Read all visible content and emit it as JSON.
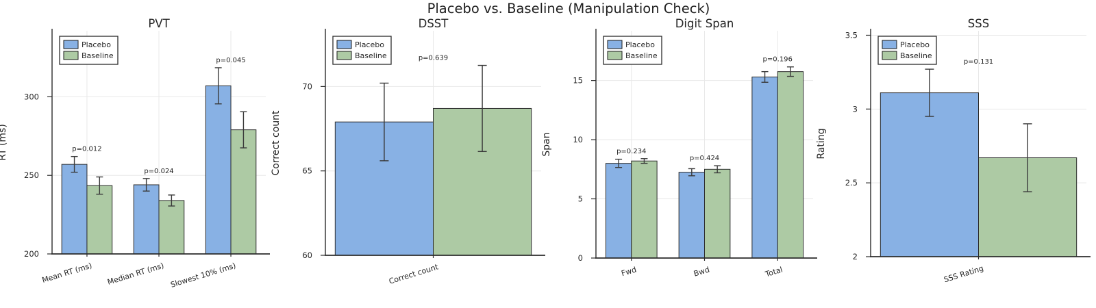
{
  "figure": {
    "title": "Placebo vs. Baseline (Manipulation Check)"
  },
  "colors": {
    "placebo": "#88b1e4",
    "baseline": "#adcaa4",
    "bar_edge": "#2b2b2b",
    "error_bar": "#3a3a3a",
    "grid": "#e8e8e8",
    "axis": "#2b2b2b",
    "text": "#262626"
  },
  "legend": {
    "labels": [
      "Placebo",
      "Baseline"
    ]
  },
  "chart_data": [
    {
      "id": "pvt",
      "type": "bar",
      "title": "PVT",
      "ylabel": "RT (ms)",
      "categories": [
        "Mean RT (ms)",
        "Median RT (ms)",
        "Slowest 10% (ms)"
      ],
      "series": [
        {
          "name": "Placebo",
          "values": [
            257,
            244,
            307
          ],
          "errors": [
            5,
            4,
            11.5
          ]
        },
        {
          "name": "Baseline",
          "values": [
            243.5,
            234,
            279
          ],
          "errors": [
            5.5,
            3.5,
            11.5
          ]
        }
      ],
      "p_values": [
        "p=0.012",
        "p=0.024",
        "p=0.045"
      ],
      "ylim": [
        200,
        342
      ],
      "yticks": [
        200,
        250,
        300
      ],
      "grid": true,
      "legend_position": "upper left"
    },
    {
      "id": "dsst",
      "type": "bar",
      "title": "DSST",
      "ylabel": "Correct count",
      "categories": [
        "Correct count"
      ],
      "series": [
        {
          "name": "Placebo",
          "values": [
            67.9
          ],
          "errors": [
            2.3
          ]
        },
        {
          "name": "Baseline",
          "values": [
            68.7
          ],
          "errors": [
            2.55
          ]
        }
      ],
      "p_values": [
        "p=0.639"
      ],
      "ylim": [
        60,
        73.3
      ],
      "yticks": [
        60,
        65,
        70
      ],
      "grid": true,
      "legend_position": "upper left"
    },
    {
      "id": "digit-span",
      "type": "bar",
      "title": "Digit Span",
      "ylabel": "Span",
      "categories": [
        "Fwd",
        "Bwd",
        "Total"
      ],
      "series": [
        {
          "name": "Placebo",
          "values": [
            8.0,
            7.25,
            15.3
          ],
          "errors": [
            0.35,
            0.3,
            0.45
          ]
        },
        {
          "name": "Baseline",
          "values": [
            8.2,
            7.5,
            15.75
          ],
          "errors": [
            0.2,
            0.3,
            0.4
          ]
        }
      ],
      "p_values": [
        "p=0.234",
        "p=0.424",
        "p=0.196"
      ],
      "ylim": [
        0,
        19.2
      ],
      "yticks": [
        0,
        5,
        10,
        15
      ],
      "grid": true,
      "legend_position": "upper left"
    },
    {
      "id": "sss",
      "type": "bar",
      "title": "SSS",
      "ylabel": "Rating",
      "categories": [
        "SSS Rating"
      ],
      "series": [
        {
          "name": "Placebo",
          "values": [
            3.11
          ],
          "errors": [
            0.16
          ]
        },
        {
          "name": "Baseline",
          "values": [
            2.67
          ],
          "errors": [
            0.23
          ]
        }
      ],
      "p_values": [
        "p=0.131"
      ],
      "ylim": [
        2,
        3.53
      ],
      "yticks": [
        2,
        2.5,
        3,
        3.5
      ],
      "grid": true,
      "legend_position": "upper left"
    }
  ]
}
